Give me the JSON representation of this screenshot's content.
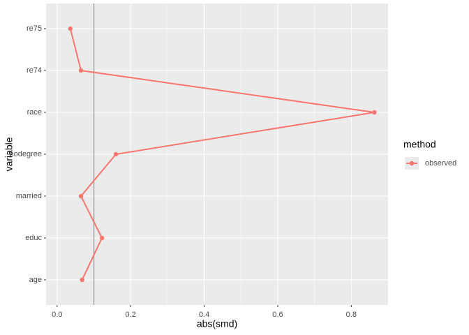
{
  "chart_data": {
    "type": "line",
    "orientation": "horizontal",
    "x_label": "abs(smd)",
    "y_label": "variable",
    "categories": [
      "age",
      "educ",
      "married",
      "nodegree",
      "race",
      "re74",
      "re75"
    ],
    "series": [
      {
        "name": "observed",
        "color": "#F8766D",
        "values": [
          0.068,
          0.122,
          0.065,
          0.16,
          0.863,
          0.065,
          0.036
        ]
      }
    ],
    "xlim": [
      -0.03,
      0.9
    ],
    "xticks": [
      {
        "value": 0,
        "label": "0.0"
      },
      0.2,
      0.4,
      0.6,
      0.8
    ],
    "xintercept": 0.1,
    "legend_title": "method",
    "grid": true
  }
}
